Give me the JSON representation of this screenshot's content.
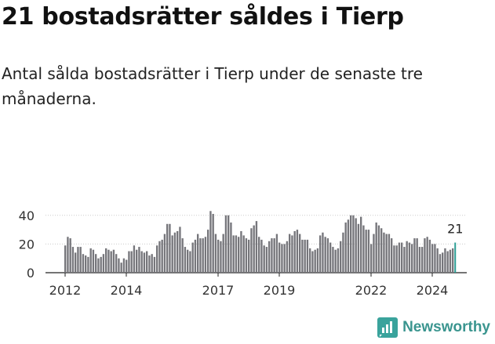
{
  "title": "21 bostadsrätter såldes i Tierp",
  "subtitle": "Antal sålda bostadsrätter i Tierp under de senaste tre månaderna.",
  "brand": {
    "name": "Newsworthy"
  },
  "colors": {
    "bar": "#76767b",
    "highlight": "#2a9d94",
    "axis": "#222222",
    "grid": "#cccccc",
    "brand": "#3a958f"
  },
  "chart_data": {
    "type": "bar",
    "title": "21 bostadsrätter såldes i Tierp",
    "xlabel": "",
    "ylabel": "",
    "ylim": [
      0,
      45
    ],
    "yticks": [
      0,
      20,
      40
    ],
    "x_start_year": 2012,
    "x_tick_labels": [
      "2012",
      "2014",
      "2017",
      "2019",
      "2022",
      "2024"
    ],
    "highlight_label": "21",
    "values": [
      19,
      25,
      24,
      18,
      14,
      18,
      18,
      13,
      12,
      11,
      17,
      16,
      13,
      10,
      11,
      13,
      17,
      16,
      15,
      16,
      13,
      10,
      7,
      10,
      9,
      15,
      15,
      19,
      16,
      18,
      15,
      14,
      15,
      12,
      13,
      11,
      19,
      22,
      23,
      27,
      34,
      34,
      26,
      28,
      29,
      32,
      24,
      18,
      16,
      15,
      21,
      23,
      27,
      24,
      24,
      25,
      30,
      43,
      41,
      27,
      23,
      22,
      27,
      40,
      40,
      35,
      26,
      26,
      25,
      29,
      26,
      24,
      23,
      31,
      33,
      36,
      25,
      23,
      19,
      18,
      22,
      24,
      24,
      27,
      21,
      20,
      20,
      22,
      27,
      26,
      29,
      30,
      27,
      23,
      23,
      23,
      17,
      15,
      16,
      17,
      26,
      28,
      25,
      24,
      21,
      18,
      16,
      17,
      22,
      28,
      35,
      37,
      40,
      40,
      38,
      34,
      39,
      33,
      30,
      30,
      20,
      27,
      35,
      33,
      31,
      28,
      27,
      27,
      24,
      19,
      19,
      21,
      21,
      18,
      22,
      21,
      20,
      24,
      24,
      18,
      18,
      24,
      25,
      23,
      20,
      20,
      17,
      13,
      14,
      17,
      15,
      16,
      17,
      21
    ]
  }
}
